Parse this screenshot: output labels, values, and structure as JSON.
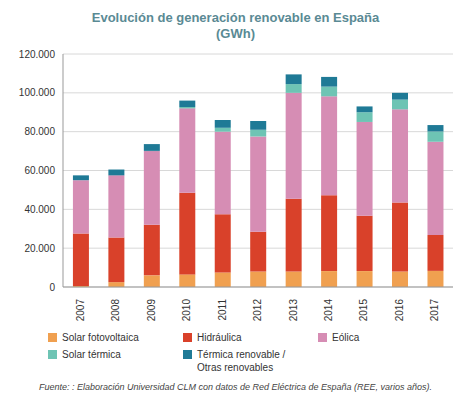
{
  "chart_data": {
    "type": "bar",
    "title": "Evolución de generación renovable en España",
    "subtitle": "(GWh)",
    "note": "Fuente: : Elaboración Universidad CLM con datos de Red Eléctrica de España (REE, varios años).",
    "categories": [
      "2007",
      "2008",
      "2009",
      "2010",
      "2011",
      "2012",
      "2013",
      "2014",
      "2015",
      "2016",
      "2017"
    ],
    "series": [
      {
        "name": "Solar fotovoltaica",
        "color": "#f0a050",
        "values": [
          500,
          2500,
          6000,
          6500,
          7500,
          8000,
          8000,
          8200,
          8200,
          8000,
          8300
        ]
      },
      {
        "name": "Hidráulica",
        "color": "#d9412a",
        "values": [
          27000,
          23000,
          26000,
          42000,
          30000,
          20500,
          37500,
          39000,
          28500,
          35500,
          18500
        ]
      },
      {
        "name": "Eólica",
        "color": "#d68db4",
        "values": [
          27500,
          32000,
          38000,
          43500,
          42500,
          49000,
          54500,
          51000,
          48300,
          48000,
          48000
        ]
      },
      {
        "name": "Solar térmica",
        "color": "#6ec4b4",
        "values": [
          0,
          0,
          100,
          700,
          2000,
          3500,
          4500,
          5000,
          5000,
          5000,
          5300
        ]
      },
      {
        "name": "Térmica renovable / Otras renovables",
        "color": "#1f7a96",
        "values": [
          2500,
          3000,
          3500,
          3300,
          4000,
          4500,
          5000,
          5000,
          3000,
          3500,
          3300
        ]
      }
    ],
    "ylim": [
      0,
      120000
    ],
    "yticks": [
      0,
      {
        "value": 20000,
        "label": "20.000"
      },
      {
        "value": 40000,
        "label": "40.000"
      },
      {
        "value": 60000,
        "label": "60.000"
      },
      {
        "value": 80000,
        "label": "80.000"
      },
      {
        "value": 100000,
        "label": "100.000"
      },
      {
        "value": 120000,
        "label": "120.000"
      }
    ],
    "stacked": true,
    "grid": true
  }
}
